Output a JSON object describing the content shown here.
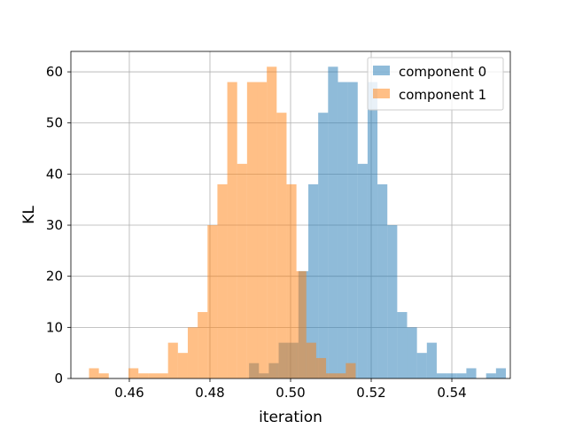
{
  "chart_data": {
    "type": "histogram",
    "title": "",
    "xlabel": "iteration",
    "ylabel": "KL",
    "xlim": [
      0.4455,
      0.5545
    ],
    "ylim": [
      0,
      64
    ],
    "grid": true,
    "legend_position": "top-right",
    "x_ticks": [
      "0.46",
      "0.48",
      "0.50",
      "0.52",
      "0.54"
    ],
    "x_tick_values": [
      0.46,
      0.48,
      0.5,
      0.52,
      0.54
    ],
    "y_ticks": [
      "0",
      "10",
      "20",
      "30",
      "40",
      "50",
      "60"
    ],
    "y_tick_values": [
      0,
      10,
      20,
      30,
      40,
      50,
      60
    ],
    "series": [
      {
        "name": "component 0",
        "color": "#1f77b4",
        "alpha": 0.5,
        "bin_start": 0.4897,
        "bin_width": 0.00245,
        "counts": [
          3,
          1,
          3,
          7,
          7,
          21,
          38,
          52,
          61,
          58,
          58,
          42,
          58,
          38,
          30,
          13,
          10,
          5,
          7,
          1,
          1,
          1,
          2,
          0,
          1,
          2
        ]
      },
      {
        "name": "component 1",
        "color": "#ff7f0e",
        "alpha": 0.5,
        "bin_start": 0.45,
        "bin_width": 0.00245,
        "counts": [
          2,
          1,
          0,
          0,
          2,
          1,
          1,
          1,
          7,
          5,
          10,
          13,
          30,
          38,
          58,
          42,
          58,
          58,
          61,
          52,
          38,
          21,
          7,
          4,
          1,
          1,
          3
        ]
      }
    ]
  }
}
